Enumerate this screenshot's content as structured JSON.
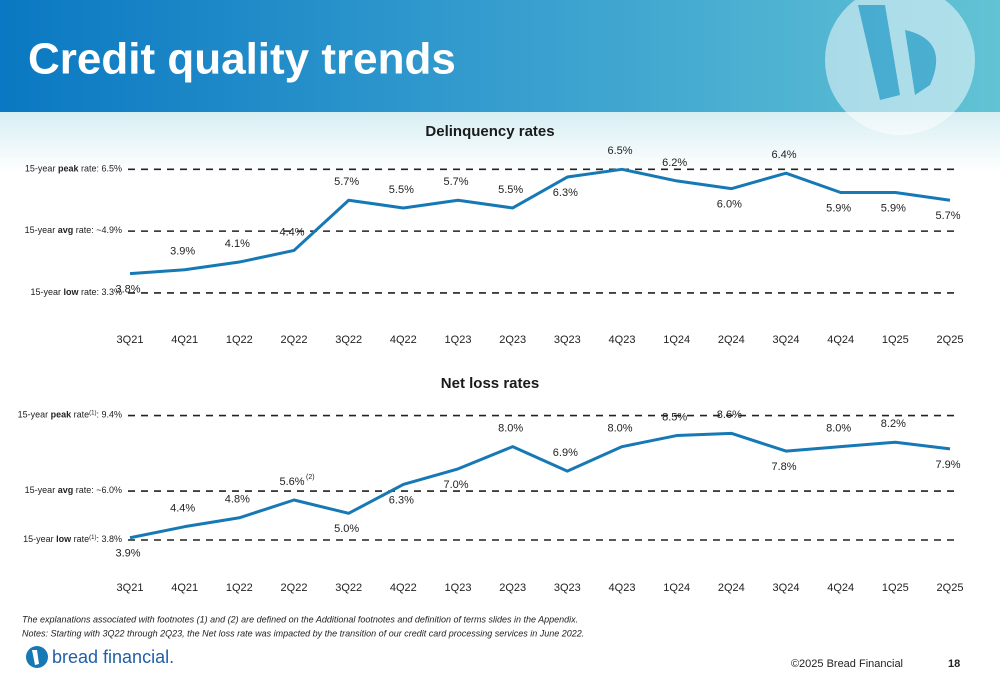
{
  "title": "Credit quality trends",
  "chart_data": [
    {
      "type": "line",
      "title": "Delinquency rates",
      "categories": [
        "3Q21",
        "4Q21",
        "1Q22",
        "2Q22",
        "3Q22",
        "4Q22",
        "1Q23",
        "2Q23",
        "3Q23",
        "4Q23",
        "1Q24",
        "2Q24",
        "3Q24",
        "4Q24",
        "1Q25",
        "2Q25"
      ],
      "values": [
        3.8,
        3.9,
        4.1,
        4.4,
        5.7,
        5.5,
        5.7,
        5.5,
        6.3,
        6.5,
        6.2,
        6.0,
        6.4,
        5.9,
        5.9,
        5.7
      ],
      "value_labels": [
        "3.8%",
        "3.9%",
        "4.1%",
        "4.4%",
        "5.7%",
        "5.5%",
        "5.7%",
        "5.5%",
        "6.3%",
        "6.5%",
        "6.2%",
        "6.0%",
        "6.4%",
        "5.9%",
        "5.9%",
        "5.7%"
      ],
      "color": "#1679b6",
      "ylim": [
        2.6,
        7.0
      ],
      "reference_lines": [
        {
          "value": 6.5,
          "label": [
            {
              "text": "15-year "
            },
            {
              "text": "peak",
              "style": "bold"
            },
            {
              "text": " rate: 6.5%"
            }
          ]
        },
        {
          "value": 4.9,
          "label": [
            {
              "text": "15-year "
            },
            {
              "text": "avg",
              "style": "bold"
            },
            {
              "text": " rate: ~4.9%"
            }
          ]
        },
        {
          "value": 3.3,
          "label": [
            {
              "text": "15-year "
            },
            {
              "text": "low",
              "style": "bold"
            },
            {
              "text": " rate: 3.3%"
            }
          ]
        }
      ]
    },
    {
      "type": "line",
      "title": "Net loss rates",
      "categories": [
        "3Q21",
        "4Q21",
        "1Q22",
        "2Q22",
        "3Q22",
        "4Q22",
        "1Q23",
        "2Q23",
        "3Q23",
        "4Q23",
        "1Q24",
        "2Q24",
        "3Q24",
        "4Q24",
        "1Q25",
        "2Q25"
      ],
      "values": [
        3.9,
        4.4,
        4.8,
        5.6,
        5.0,
        6.3,
        7.0,
        8.0,
        6.9,
        8.0,
        8.5,
        8.6,
        7.8,
        8.0,
        8.2,
        7.9
      ],
      "value_labels": [
        "3.9%",
        "4.4%",
        "4.8%",
        "5.6%",
        "5.0%",
        "6.3%",
        "7.0%",
        "8.0%",
        "6.9%",
        "8.0%",
        "8.5%",
        "8.6%",
        "7.8%",
        "8.0%",
        "8.2%",
        "7.9%"
      ],
      "value_label_notes": [
        null,
        null,
        null,
        "(2)",
        null,
        null,
        null,
        null,
        null,
        null,
        null,
        null,
        null,
        null,
        null,
        null
      ],
      "color": "#1679b6",
      "ylim": [
        2.9,
        10.1
      ],
      "reference_lines": [
        {
          "value": 9.4,
          "label": [
            {
              "text": "15-year "
            },
            {
              "text": "peak",
              "style": "bold"
            },
            {
              "text": " rate"
            },
            {
              "text": "(1)",
              "style": "sup"
            },
            {
              "text": ": 9.4%"
            }
          ]
        },
        {
          "value": 6.0,
          "label": [
            {
              "text": "15-year "
            },
            {
              "text": "avg",
              "style": "bold"
            },
            {
              "text": " rate: ~6.0%"
            }
          ]
        },
        {
          "value": 3.8,
          "label": [
            {
              "text": "15-year "
            },
            {
              "text": "low",
              "style": "bold"
            },
            {
              "text": " rate"
            },
            {
              "text": "(1)",
              "style": "sup"
            },
            {
              "text": ": 3.8%"
            }
          ]
        }
      ]
    }
  ],
  "footnotes": [
    "The explanations associated with footnotes (1) and (2) are defined on the Additional footnotes and definition of terms slides in the Appendix.",
    "Notes: Starting with 3Q22 through 2Q23, the Net loss rate was impacted by the transition of our credit card processing services in June 2022."
  ],
  "footer": {
    "logo": "bread financial.",
    "copyright": "©2025 Bread Financial",
    "page": "18"
  }
}
